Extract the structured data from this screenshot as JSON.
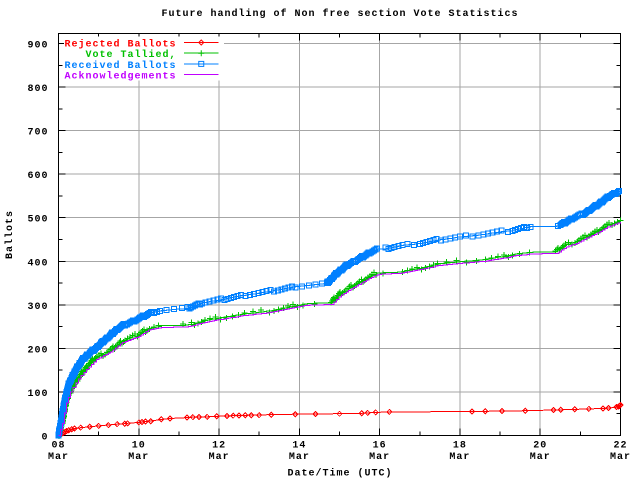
{
  "chart_data": {
    "type": "line",
    "title": "Future handling of Non free section Vote Statistics",
    "xlabel": "Date/Time (UTC)",
    "ylabel": "Ballots",
    "x_axis": {
      "major_tick_labels": [
        "08",
        "10",
        "12",
        "14",
        "16",
        "18",
        "20",
        "22"
      ],
      "major_tick_days": [
        8,
        10,
        12,
        14,
        16,
        18,
        20,
        22
      ],
      "minor_tick_days": [
        9,
        11,
        13,
        15,
        17,
        19,
        21
      ],
      "month_label": "Mar",
      "range_days": [
        8,
        22
      ]
    },
    "y_axis": {
      "tick_labels": [
        "0",
        "100",
        "200",
        "300",
        "400",
        "500",
        "600",
        "700",
        "800",
        "900"
      ],
      "tick_values": [
        0,
        100,
        200,
        300,
        400,
        500,
        600,
        700,
        800,
        900
      ],
      "minor_tick_values": [
        50,
        150,
        250,
        350,
        450,
        550,
        650,
        750,
        850
      ],
      "range": [
        0,
        923
      ]
    },
    "grid": true,
    "legend_position": "top-left",
    "series": [
      {
        "name": "Rejected Ballots",
        "color": "#ff0000",
        "marker": "diamond",
        "marker_mode": "points",
        "stepped": false,
        "marker_every": 0,
        "jitter": 0,
        "points": [
          [
            8.0,
            0
          ],
          [
            8.04,
            2
          ],
          [
            8.08,
            4
          ],
          [
            8.12,
            6
          ],
          [
            8.16,
            8
          ],
          [
            8.2,
            10
          ],
          [
            8.26,
            12
          ],
          [
            8.33,
            14
          ],
          [
            8.4,
            16
          ],
          [
            8.55,
            18
          ],
          [
            8.78,
            20
          ],
          [
            9.0,
            22
          ],
          [
            9.24,
            24
          ],
          [
            9.46,
            26
          ],
          [
            9.65,
            27
          ],
          [
            9.72,
            28
          ],
          [
            10.0,
            30
          ],
          [
            10.08,
            31
          ],
          [
            10.17,
            32
          ],
          [
            10.3,
            33
          ],
          [
            10.56,
            37
          ],
          [
            10.78,
            39
          ],
          [
            11.2,
            41
          ],
          [
            11.35,
            42
          ],
          [
            11.5,
            42.5
          ],
          [
            11.7,
            43
          ],
          [
            11.94,
            44
          ],
          [
            12.2,
            45
          ],
          [
            12.35,
            45.5
          ],
          [
            12.5,
            46
          ],
          [
            12.65,
            46.3
          ],
          [
            12.8,
            46.6
          ],
          [
            13.0,
            47
          ],
          [
            13.3,
            48
          ],
          [
            13.9,
            49
          ],
          [
            14.4,
            49.5
          ],
          [
            15.0,
            50
          ],
          [
            15.55,
            51
          ],
          [
            15.7,
            52
          ],
          [
            15.9,
            53
          ],
          [
            16.24,
            54
          ],
          [
            18.3,
            55
          ],
          [
            18.63,
            55.5
          ],
          [
            19.05,
            56
          ],
          [
            19.63,
            57
          ],
          [
            20.33,
            58.5
          ],
          [
            20.51,
            59
          ],
          [
            20.86,
            60
          ],
          [
            21.21,
            61
          ],
          [
            21.56,
            62
          ],
          [
            21.7,
            63
          ],
          [
            21.9,
            65
          ],
          [
            21.95,
            66.5
          ],
          [
            21.98,
            68
          ],
          [
            22.0,
            70
          ]
        ]
      },
      {
        "name": "Vote Tallied,",
        "color": "#00c000",
        "marker": "plus",
        "marker_mode": "steps",
        "stepped": true,
        "marker_every": 2.2,
        "jitter": 1.8,
        "points": [
          [
            8.0,
            0
          ],
          [
            8.1,
            30
          ],
          [
            8.2,
            80
          ],
          [
            8.26,
            95
          ],
          [
            8.4,
            120
          ],
          [
            8.6,
            146
          ],
          [
            8.8,
            168
          ],
          [
            8.95,
            180
          ],
          [
            9.29,
            195
          ],
          [
            9.63,
            219
          ],
          [
            9.97,
            231
          ],
          [
            10.24,
            246
          ],
          [
            10.56,
            252
          ],
          [
            11.1,
            253
          ],
          [
            11.3,
            255
          ],
          [
            11.65,
            264
          ],
          [
            12.0,
            270
          ],
          [
            12.6,
            279
          ],
          [
            13.25,
            286
          ],
          [
            14.0,
            300
          ],
          [
            14.2,
            303
          ],
          [
            14.78,
            305
          ],
          [
            15.04,
            328
          ],
          [
            15.35,
            344
          ],
          [
            15.67,
            361
          ],
          [
            15.93,
            373
          ],
          [
            16.08,
            374
          ],
          [
            16.5,
            375
          ],
          [
            17.0,
            384
          ],
          [
            17.45,
            394
          ],
          [
            18.0,
            399
          ],
          [
            18.58,
            404
          ],
          [
            19.14,
            412
          ],
          [
            19.37,
            417
          ],
          [
            19.82,
            421
          ],
          [
            20.37,
            422
          ],
          [
            20.63,
            438
          ],
          [
            20.89,
            445
          ],
          [
            21.15,
            457
          ],
          [
            21.42,
            469
          ],
          [
            21.68,
            483
          ],
          [
            21.94,
            491
          ],
          [
            22.0,
            493
          ]
        ]
      },
      {
        "name": "Received Ballots",
        "color": "#0080ff",
        "marker": "square",
        "marker_mode": "steps",
        "stepped": true,
        "marker_every": 1.5,
        "jitter": 1.0,
        "points": [
          [
            8.0,
            0
          ],
          [
            8.05,
            25
          ],
          [
            8.09,
            48
          ],
          [
            8.17,
            87
          ],
          [
            8.26,
            119
          ],
          [
            8.43,
            151
          ],
          [
            8.6,
            175
          ],
          [
            8.77,
            189
          ],
          [
            8.95,
            202
          ],
          [
            9.11,
            216
          ],
          [
            9.29,
            230
          ],
          [
            9.46,
            244
          ],
          [
            9.63,
            254
          ],
          [
            9.8,
            260
          ],
          [
            9.97,
            267
          ],
          [
            10.3,
            282
          ],
          [
            10.56,
            287
          ],
          [
            11.2,
            292
          ],
          [
            11.59,
            305
          ],
          [
            12.0,
            311
          ],
          [
            12.48,
            320
          ],
          [
            13.12,
            329
          ],
          [
            13.5,
            335
          ],
          [
            13.9,
            342
          ],
          [
            14.68,
            349
          ],
          [
            14.94,
            373
          ],
          [
            15.2,
            392
          ],
          [
            15.46,
            404
          ],
          [
            15.77,
            421
          ],
          [
            15.95,
            428
          ],
          [
            16.1,
            428
          ],
          [
            16.34,
            433
          ],
          [
            16.6,
            437
          ],
          [
            17.0,
            441
          ],
          [
            17.45,
            449
          ],
          [
            18.0,
            456
          ],
          [
            18.52,
            461
          ],
          [
            19.03,
            468
          ],
          [
            19.26,
            470
          ],
          [
            19.59,
            477
          ],
          [
            19.76,
            480
          ],
          [
            20.33,
            480
          ],
          [
            20.48,
            482
          ],
          [
            20.79,
            498
          ],
          [
            21.1,
            510
          ],
          [
            21.42,
            529
          ],
          [
            21.73,
            550
          ],
          [
            21.99,
            562
          ]
        ]
      },
      {
        "name": "Acknowledgements",
        "color": "#c000ff",
        "marker": "none",
        "marker_mode": "none",
        "stepped": true,
        "marker_every": 0,
        "jitter": 0,
        "points": [
          [
            8.0,
            0
          ],
          [
            8.1,
            28
          ],
          [
            8.2,
            75
          ],
          [
            8.3,
            100
          ],
          [
            8.5,
            130
          ],
          [
            8.7,
            152
          ],
          [
            8.95,
            175
          ],
          [
            9.3,
            192
          ],
          [
            9.6,
            214
          ],
          [
            10.0,
            227
          ],
          [
            10.24,
            242
          ],
          [
            10.56,
            248
          ],
          [
            11.1,
            249
          ],
          [
            11.3,
            251
          ],
          [
            11.65,
            260
          ],
          [
            12.0,
            266
          ],
          [
            12.6,
            275
          ],
          [
            13.25,
            282
          ],
          [
            14.0,
            296
          ],
          [
            14.2,
            299
          ],
          [
            14.8,
            301
          ],
          [
            15.05,
            323
          ],
          [
            15.35,
            340
          ],
          [
            15.67,
            357
          ],
          [
            15.93,
            369
          ],
          [
            16.1,
            371
          ],
          [
            16.5,
            372
          ],
          [
            17.0,
            381
          ],
          [
            17.45,
            390
          ],
          [
            18.0,
            395
          ],
          [
            18.6,
            400
          ],
          [
            19.15,
            408
          ],
          [
            19.4,
            413
          ],
          [
            19.8,
            417
          ],
          [
            20.4,
            418
          ],
          [
            20.65,
            433
          ],
          [
            20.9,
            441
          ],
          [
            21.15,
            453
          ],
          [
            21.42,
            465
          ],
          [
            21.68,
            479
          ],
          [
            21.94,
            488
          ],
          [
            22.0,
            490
          ]
        ]
      }
    ]
  },
  "colors": {
    "background": "#ffffff",
    "frame": "#000000",
    "grid": "#a6a6a6",
    "text": "#000000"
  }
}
